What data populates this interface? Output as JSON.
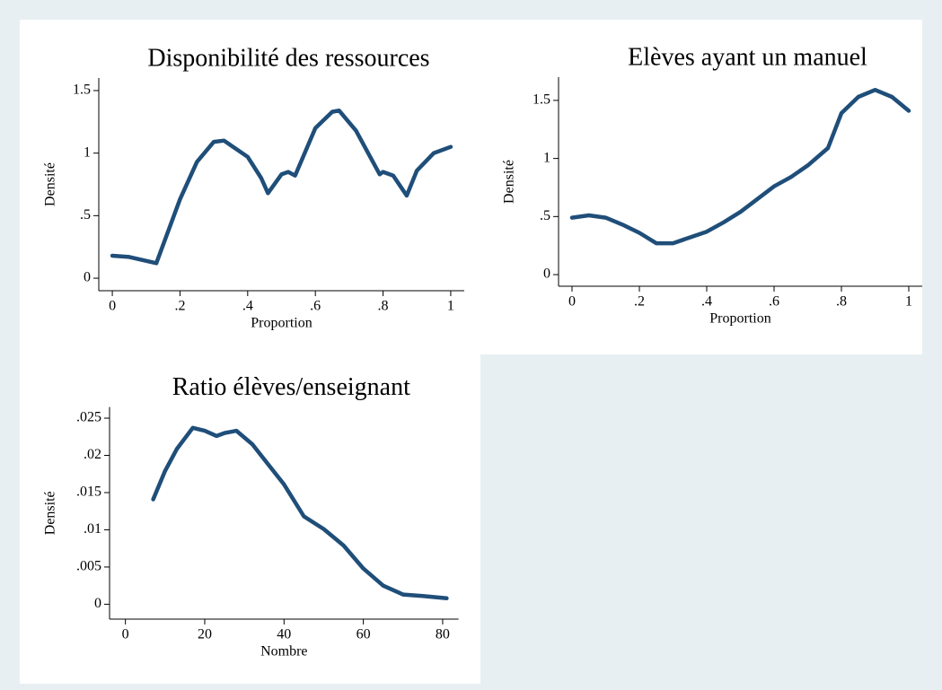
{
  "chart_data": [
    {
      "type": "line",
      "title": "Disponibilité des ressources",
      "x_label": "Proportion",
      "y_label": "Densité",
      "color": "#1f4e79",
      "x": [
        0,
        0.05,
        0.13,
        0.2,
        0.25,
        0.3,
        0.33,
        0.4,
        0.44,
        0.46,
        0.5,
        0.52,
        0.54,
        0.6,
        0.65,
        0.67,
        0.72,
        0.79,
        0.8,
        0.83,
        0.87,
        0.9,
        0.95,
        1
      ],
      "values": [
        0.18,
        0.17,
        0.12,
        0.63,
        0.93,
        1.09,
        1.1,
        0.97,
        0.8,
        0.68,
        0.83,
        0.85,
        0.82,
        1.2,
        1.33,
        1.34,
        1.18,
        0.83,
        0.85,
        0.82,
        0.66,
        0.86,
        1.0,
        1.05
      ],
      "xlim": [
        -0.04,
        1.04
      ],
      "ylim": [
        -0.1,
        1.6
      ],
      "xticks": [
        0,
        {
          "value": 0.2,
          "label": ".2"
        },
        {
          "value": 0.4,
          "label": ".4"
        },
        {
          "value": 0.6,
          "label": ".6"
        },
        {
          "value": 0.8,
          "label": ".8"
        },
        1
      ],
      "yticks": [
        0,
        {
          "value": 0.5,
          "label": ".5"
        },
        1,
        1.5
      ]
    },
    {
      "type": "line",
      "title": "Elèves ayant un manuel",
      "x_label": "Proportion",
      "y_label": "Densité",
      "color": "#1f4e79",
      "x": [
        0,
        0.05,
        0.1,
        0.15,
        0.2,
        0.25,
        0.3,
        0.35,
        0.4,
        0.45,
        0.5,
        0.55,
        0.6,
        0.65,
        0.7,
        0.76,
        0.8,
        0.85,
        0.9,
        0.95,
        1
      ],
      "values": [
        0.49,
        0.51,
        0.49,
        0.43,
        0.36,
        0.27,
        0.27,
        0.32,
        0.37,
        0.45,
        0.54,
        0.65,
        0.76,
        0.84,
        0.94,
        1.09,
        1.39,
        1.53,
        1.59,
        1.53,
        1.41
      ],
      "xlim": [
        -0.04,
        1.04
      ],
      "ylim": [
        -0.1,
        1.7
      ],
      "xticks": [
        0,
        {
          "value": 0.2,
          "label": ".2"
        },
        {
          "value": 0.4,
          "label": ".4"
        },
        {
          "value": 0.6,
          "label": ".6"
        },
        {
          "value": 0.8,
          "label": ".8"
        },
        1
      ],
      "yticks": [
        0,
        {
          "value": 0.5,
          "label": ".5"
        },
        1,
        1.5
      ]
    },
    {
      "type": "line",
      "title": "Ratio élèves/enseignant",
      "x_label": "Nombre",
      "y_label": "Densité",
      "color": "#1f4e79",
      "x": [
        7,
        10,
        13,
        17,
        20,
        23,
        25,
        28,
        32,
        36,
        40,
        45,
        50,
        55,
        60,
        65,
        70,
        75,
        81
      ],
      "values": [
        0.0141,
        0.0179,
        0.0209,
        0.0237,
        0.0233,
        0.0226,
        0.023,
        0.0233,
        0.0215,
        0.0188,
        0.0161,
        0.0118,
        0.0101,
        0.0079,
        0.0048,
        0.0025,
        0.0013,
        0.0011,
        0.0008
      ],
      "xlim": [
        -4,
        84
      ],
      "ylim": [
        -0.002,
        0.0265
      ],
      "xticks": [
        0,
        20,
        40,
        60,
        80
      ],
      "yticks": [
        0,
        {
          "value": 0.005,
          "label": ".005"
        },
        {
          "value": 0.01,
          "label": ".01"
        },
        {
          "value": 0.015,
          "label": ".015"
        },
        {
          "value": 0.02,
          "label": ".02"
        },
        {
          "value": 0.025,
          "label": ".025"
        }
      ]
    }
  ]
}
